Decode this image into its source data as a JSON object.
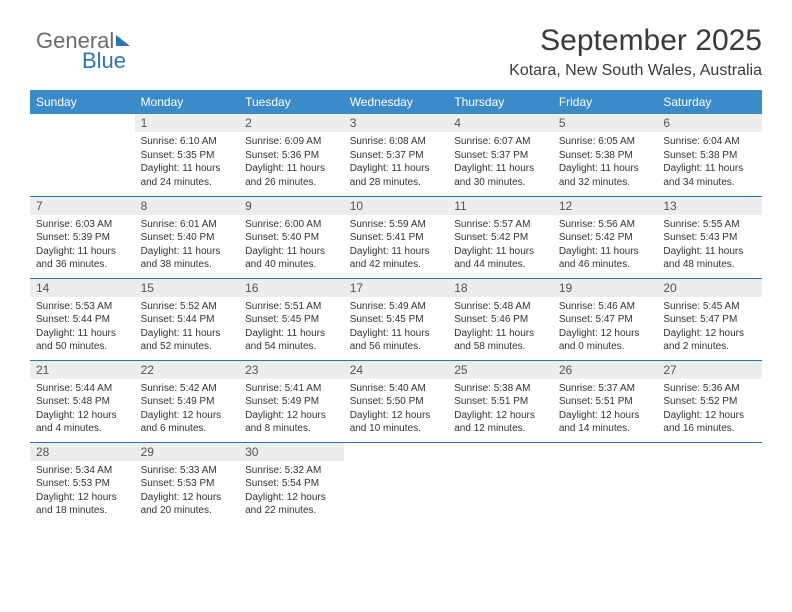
{
  "brand": {
    "part1": "General",
    "part2": "Blue"
  },
  "title": "September 2025",
  "location": "Kotara, New South Wales, Australia",
  "colors": {
    "accent": "#3b8bc9",
    "rule": "#2f74b5",
    "daybg": "#eceded"
  },
  "dayHeaders": [
    "Sunday",
    "Monday",
    "Tuesday",
    "Wednesday",
    "Thursday",
    "Friday",
    "Saturday"
  ],
  "weeks": [
    [
      null,
      {
        "n": "1",
        "sr": "6:10 AM",
        "ss": "5:35 PM",
        "dl": "11 hours and 24 minutes."
      },
      {
        "n": "2",
        "sr": "6:09 AM",
        "ss": "5:36 PM",
        "dl": "11 hours and 26 minutes."
      },
      {
        "n": "3",
        "sr": "6:08 AM",
        "ss": "5:37 PM",
        "dl": "11 hours and 28 minutes."
      },
      {
        "n": "4",
        "sr": "6:07 AM",
        "ss": "5:37 PM",
        "dl": "11 hours and 30 minutes."
      },
      {
        "n": "5",
        "sr": "6:05 AM",
        "ss": "5:38 PM",
        "dl": "11 hours and 32 minutes."
      },
      {
        "n": "6",
        "sr": "6:04 AM",
        "ss": "5:38 PM",
        "dl": "11 hours and 34 minutes."
      }
    ],
    [
      {
        "n": "7",
        "sr": "6:03 AM",
        "ss": "5:39 PM",
        "dl": "11 hours and 36 minutes."
      },
      {
        "n": "8",
        "sr": "6:01 AM",
        "ss": "5:40 PM",
        "dl": "11 hours and 38 minutes."
      },
      {
        "n": "9",
        "sr": "6:00 AM",
        "ss": "5:40 PM",
        "dl": "11 hours and 40 minutes."
      },
      {
        "n": "10",
        "sr": "5:59 AM",
        "ss": "5:41 PM",
        "dl": "11 hours and 42 minutes."
      },
      {
        "n": "11",
        "sr": "5:57 AM",
        "ss": "5:42 PM",
        "dl": "11 hours and 44 minutes."
      },
      {
        "n": "12",
        "sr": "5:56 AM",
        "ss": "5:42 PM",
        "dl": "11 hours and 46 minutes."
      },
      {
        "n": "13",
        "sr": "5:55 AM",
        "ss": "5:43 PM",
        "dl": "11 hours and 48 minutes."
      }
    ],
    [
      {
        "n": "14",
        "sr": "5:53 AM",
        "ss": "5:44 PM",
        "dl": "11 hours and 50 minutes."
      },
      {
        "n": "15",
        "sr": "5:52 AM",
        "ss": "5:44 PM",
        "dl": "11 hours and 52 minutes."
      },
      {
        "n": "16",
        "sr": "5:51 AM",
        "ss": "5:45 PM",
        "dl": "11 hours and 54 minutes."
      },
      {
        "n": "17",
        "sr": "5:49 AM",
        "ss": "5:45 PM",
        "dl": "11 hours and 56 minutes."
      },
      {
        "n": "18",
        "sr": "5:48 AM",
        "ss": "5:46 PM",
        "dl": "11 hours and 58 minutes."
      },
      {
        "n": "19",
        "sr": "5:46 AM",
        "ss": "5:47 PM",
        "dl": "12 hours and 0 minutes."
      },
      {
        "n": "20",
        "sr": "5:45 AM",
        "ss": "5:47 PM",
        "dl": "12 hours and 2 minutes."
      }
    ],
    [
      {
        "n": "21",
        "sr": "5:44 AM",
        "ss": "5:48 PM",
        "dl": "12 hours and 4 minutes."
      },
      {
        "n": "22",
        "sr": "5:42 AM",
        "ss": "5:49 PM",
        "dl": "12 hours and 6 minutes."
      },
      {
        "n": "23",
        "sr": "5:41 AM",
        "ss": "5:49 PM",
        "dl": "12 hours and 8 minutes."
      },
      {
        "n": "24",
        "sr": "5:40 AM",
        "ss": "5:50 PM",
        "dl": "12 hours and 10 minutes."
      },
      {
        "n": "25",
        "sr": "5:38 AM",
        "ss": "5:51 PM",
        "dl": "12 hours and 12 minutes."
      },
      {
        "n": "26",
        "sr": "5:37 AM",
        "ss": "5:51 PM",
        "dl": "12 hours and 14 minutes."
      },
      {
        "n": "27",
        "sr": "5:36 AM",
        "ss": "5:52 PM",
        "dl": "12 hours and 16 minutes."
      }
    ],
    [
      {
        "n": "28",
        "sr": "5:34 AM",
        "ss": "5:53 PM",
        "dl": "12 hours and 18 minutes."
      },
      {
        "n": "29",
        "sr": "5:33 AM",
        "ss": "5:53 PM",
        "dl": "12 hours and 20 minutes."
      },
      {
        "n": "30",
        "sr": "5:32 AM",
        "ss": "5:54 PM",
        "dl": "12 hours and 22 minutes."
      },
      null,
      null,
      null,
      null
    ]
  ],
  "labels": {
    "sunrise": "Sunrise:",
    "sunset": "Sunset:",
    "daylight": "Daylight:"
  }
}
